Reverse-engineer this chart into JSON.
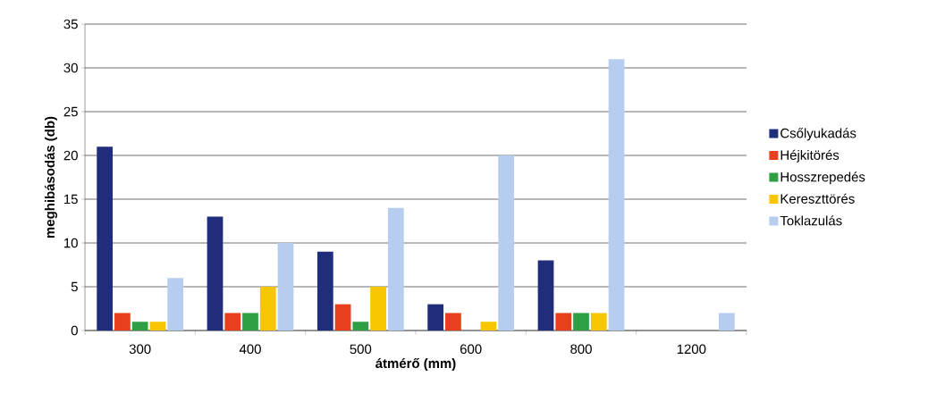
{
  "chart_data": {
    "type": "bar",
    "xlabel": "átmérő (mm)",
    "ylabel": "meghibásodás (db)",
    "categories": [
      "300",
      "400",
      "500",
      "600",
      "800",
      "1200"
    ],
    "series": [
      {
        "name": "Csőlyukadás",
        "color": "#1f2d7a",
        "values": [
          21,
          13,
          9,
          3,
          8,
          0
        ]
      },
      {
        "name": "Héjkitörés",
        "color": "#e8401c",
        "values": [
          2,
          2,
          3,
          2,
          2,
          0
        ]
      },
      {
        "name": "Hosszrepedés",
        "color": "#2ea043",
        "values": [
          1,
          2,
          1,
          0,
          2,
          0
        ]
      },
      {
        "name": "Kereszttörés",
        "color": "#f7c600",
        "values": [
          1,
          5,
          5,
          1,
          2,
          0
        ]
      },
      {
        "name": "Toklazulás",
        "color": "#b7cdf0",
        "values": [
          6,
          10,
          14,
          20,
          31,
          2
        ]
      }
    ],
    "ylim": [
      0,
      35
    ],
    "yticks": [
      0,
      5,
      10,
      15,
      20,
      25,
      30,
      35
    ],
    "grid": "y",
    "legend": "right"
  }
}
